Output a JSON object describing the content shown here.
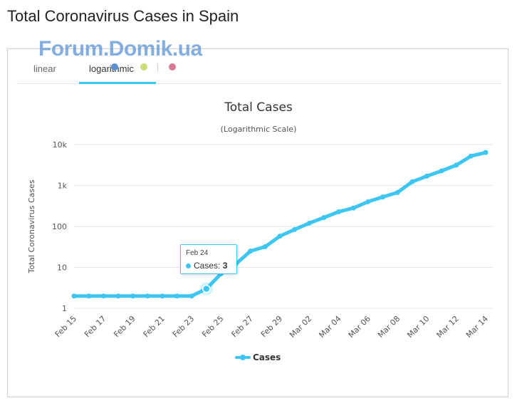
{
  "page": {
    "title": "Total Coronavirus Cases in Spain"
  },
  "watermark": "Forum.Domik.ua",
  "tabs": {
    "linear": "linear",
    "logarithmic": "logarithmic"
  },
  "colors": {
    "series": "#3ec6f2",
    "accent": "#3ec6f2",
    "dots": [
      "#5b8fd0",
      "#cfdc7a",
      "#d8798f"
    ]
  },
  "tooltip": {
    "date": "Feb 24",
    "series": "Cases",
    "value": "3"
  },
  "chart_data": {
    "type": "line",
    "title": "Total Cases",
    "subtitle": "(Logarithmic Scale)",
    "xlabel": "",
    "ylabel": "Total Coronavirus Cases",
    "y_scale": "log",
    "ylim": [
      1,
      10000
    ],
    "y_ticks": [
      1,
      10,
      100,
      1000,
      10000
    ],
    "y_tick_labels": [
      "1",
      "10",
      "100",
      "1k",
      "10k"
    ],
    "x_tick_labels": [
      "Feb 15",
      "Feb 17",
      "Feb 19",
      "Feb 21",
      "Feb 23",
      "Feb 25",
      "Feb 27",
      "Feb 29",
      "Mar 02",
      "Mar 04",
      "Mar 06",
      "Mar 08",
      "Mar 10",
      "Mar 12",
      "Mar 14"
    ],
    "legend": {
      "position": "bottom",
      "entries": [
        "Cases"
      ]
    },
    "grid": true,
    "x": [
      "Feb 15",
      "Feb 16",
      "Feb 17",
      "Feb 18",
      "Feb 19",
      "Feb 20",
      "Feb 21",
      "Feb 22",
      "Feb 23",
      "Feb 24",
      "Feb 25",
      "Feb 26",
      "Feb 27",
      "Feb 28",
      "Feb 29",
      "Mar 01",
      "Mar 02",
      "Mar 03",
      "Mar 04",
      "Mar 05",
      "Mar 06",
      "Mar 07",
      "Mar 08",
      "Mar 09",
      "Mar 10",
      "Mar 11",
      "Mar 12",
      "Mar 13",
      "Mar 14"
    ],
    "series": [
      {
        "name": "Cases",
        "values": [
          2,
          2,
          2,
          2,
          2,
          2,
          2,
          2,
          2,
          3,
          7,
          12,
          25,
          32,
          58,
          84,
          120,
          165,
          228,
          282,
          401,
          525,
          674,
          1231,
          1695,
          2277,
          3146,
          5232,
          6391
        ]
      }
    ]
  }
}
